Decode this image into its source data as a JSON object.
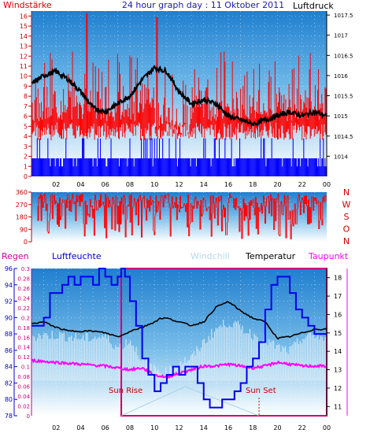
{
  "header": {
    "left": "Windstärke",
    "title": "24 hour graph day : 11 Oktober 2011",
    "right": "Luftdruck"
  },
  "legend": {
    "regen": "Regen",
    "luftfeuchte": "Luftfeuchte",
    "windchill": "Windchill",
    "temperatur": "Temperatur",
    "taupunkt": "Taupunkt"
  },
  "annotations": {
    "sunrise": "Sun Rise",
    "sunset": "Sun Set"
  },
  "colors": {
    "wind": "#ff0000",
    "gust_low": "#0000ff",
    "pressure": "#000000",
    "humidity": "#0000dd",
    "temp": "#000000",
    "windchill": "#cfe8f8",
    "dewpoint": "#ff00ff",
    "rain": "#cc0077",
    "sun": "#cc0000"
  },
  "chart_data": [
    {
      "type": "line",
      "name": "wind_pressure",
      "x_ticks": [
        "02",
        "04",
        "06",
        "08",
        "10",
        "12",
        "14",
        "16",
        "18",
        "20",
        "22",
        "00"
      ],
      "left_axis": {
        "label": "Windstärke",
        "min": 0,
        "max": 16.5,
        "ticks": [
          0,
          1,
          2,
          3,
          4,
          5,
          6,
          7,
          8,
          9,
          10,
          11,
          12,
          13,
          14,
          15,
          16
        ]
      },
      "right_axis": {
        "label": "Luftdruck",
        "min": 1013.5,
        "max": 1017.6,
        "ticks": [
          "1014",
          "1014.5",
          "1015",
          "1015.5",
          "1016",
          "1016.5",
          "1017",
          "1017.5"
        ]
      },
      "pressure": {
        "x": [
          0,
          1,
          2,
          3,
          4,
          5,
          6,
          7,
          8,
          9,
          10,
          11,
          12,
          13,
          14,
          15,
          16,
          17,
          18,
          19,
          20,
          21,
          22,
          23,
          24
        ],
        "values": [
          1015.8,
          1016.0,
          1016.1,
          1015.9,
          1015.6,
          1015.2,
          1015.1,
          1015.3,
          1015.5,
          1015.9,
          1016.2,
          1016.1,
          1015.6,
          1015.3,
          1015.4,
          1015.3,
          1015.0,
          1014.9,
          1014.8,
          1014.9,
          1015.0,
          1015.1,
          1015.0,
          1015.1,
          1015.0
        ]
      },
      "wind_peaks": {
        "x": [
          4.5,
          10.2
        ],
        "values": [
          16.3,
          15.9
        ]
      }
    },
    {
      "type": "scatter",
      "name": "wind_direction",
      "x_ticks": [
        "02",
        "04",
        "06",
        "08",
        "10",
        "12",
        "14",
        "16",
        "18",
        "20",
        "22",
        "00"
      ],
      "left_axis": {
        "ticks": [
          0,
          90,
          180,
          270,
          360
        ]
      },
      "right_labels": [
        "N",
        "W",
        "S",
        "O",
        "N"
      ]
    },
    {
      "type": "line",
      "name": "humidity_temperature",
      "x_ticks": [
        "02",
        "04",
        "06",
        "08",
        "10",
        "12",
        "14",
        "16",
        "18",
        "20",
        "22",
        "00"
      ],
      "rain_axis": {
        "min": 0,
        "max": 0.3,
        "ticks": [
          "0",
          "0.02",
          "0.04",
          "0.06",
          "0.08",
          "0.1",
          "0.12",
          "0.14",
          "0.16",
          "0.18",
          "0.2",
          "0.22",
          "0.24",
          "0.26",
          "0.28",
          "0.3"
        ]
      },
      "humidity_axis": {
        "min": 78,
        "max": 96,
        "ticks": [
          "78",
          "80",
          "82",
          "84",
          "86",
          "88",
          "90",
          "92",
          "94",
          "96"
        ]
      },
      "temp_axis": {
        "min": 10.5,
        "max": 18.5,
        "ticks": [
          "11",
          "12",
          "13",
          "14",
          "15",
          "16",
          "17",
          "18"
        ]
      },
      "humidity": {
        "x": [
          0,
          1,
          1.5,
          2,
          2.5,
          3,
          3.5,
          4,
          4.5,
          5,
          5.5,
          6,
          6.5,
          7,
          7.3,
          7.6,
          8,
          8.5,
          9,
          9.5,
          10,
          10.5,
          11,
          11.5,
          12,
          12.5,
          13,
          13.5,
          14,
          14.5,
          15,
          15.5,
          16,
          16.5,
          17,
          17.5,
          18,
          18.5,
          19,
          19.5,
          20,
          20.5,
          21,
          21.5,
          22,
          22.5,
          23,
          23.5,
          24
        ],
        "values": [
          89,
          90,
          93,
          93,
          94,
          95,
          94,
          95,
          95,
          94,
          96,
          95,
          94,
          95,
          96,
          95,
          92,
          89,
          85,
          83,
          81,
          82,
          83,
          84,
          83,
          84,
          84,
          82,
          80,
          79,
          79,
          80,
          80,
          81,
          82,
          84,
          85,
          87,
          91,
          94,
          95,
          95,
          93,
          91,
          90,
          89,
          88,
          88,
          88
        ]
      },
      "temperature": {
        "x": [
          0,
          1,
          2,
          3,
          4,
          5,
          6,
          7,
          7.5,
          8,
          9,
          10,
          10.5,
          11,
          12,
          13,
          14,
          15,
          16,
          17,
          18,
          19,
          20,
          21,
          22,
          23,
          24
        ],
        "values": [
          15.5,
          15.6,
          15.3,
          15.1,
          15.1,
          15.1,
          15.0,
          14.8,
          14.9,
          15.1,
          15.3,
          15.6,
          15.8,
          15.8,
          15.6,
          15.4,
          15.6,
          16.4,
          16.7,
          16.2,
          15.8,
          15.6,
          14.7,
          14.8,
          15.0,
          15.2,
          15.2
        ]
      },
      "dewpoint": {
        "x": [
          0,
          2,
          4,
          6,
          7,
          8,
          9,
          10,
          11,
          12,
          13,
          14,
          15,
          16,
          17,
          18,
          19,
          20,
          21,
          22,
          23,
          24
        ],
        "values": [
          13.5,
          13.4,
          13.3,
          13.2,
          13.1,
          13.0,
          13.1,
          12.7,
          12.6,
          12.8,
          13.0,
          13.2,
          13.2,
          13.3,
          13.2,
          13.1,
          13.2,
          13.4,
          13.3,
          13.2,
          13.2,
          13.2
        ]
      },
      "windchill": {
        "x": [
          0,
          2,
          4,
          6,
          7,
          8,
          9,
          10,
          11,
          12,
          13,
          14,
          15,
          16,
          17,
          18,
          19,
          20,
          21,
          22,
          23,
          24
        ],
        "values": [
          14.8,
          14.9,
          14.7,
          14.8,
          14.2,
          14.6,
          13.6,
          13.0,
          12.8,
          13.4,
          13.6,
          14.5,
          15.2,
          15.6,
          15.3,
          14.9,
          14.6,
          14.2,
          14.0,
          14.7,
          14.9,
          14.6
        ]
      },
      "rain": {
        "start_hour": 7.3,
        "end_hour": 24,
        "value": 0.3
      },
      "sunrise_hour": 7.3,
      "sunset_hour": 18.5
    }
  ]
}
